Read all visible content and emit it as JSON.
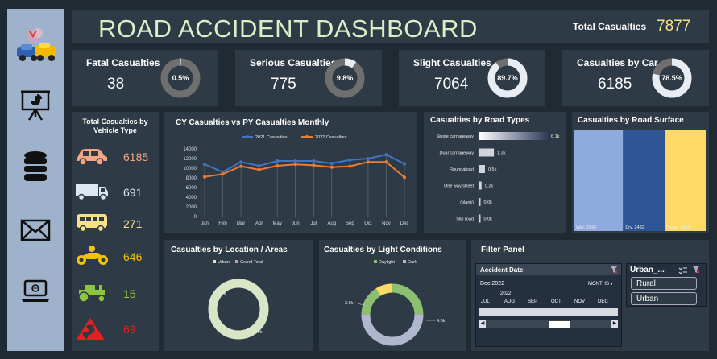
{
  "title": "ROAD ACCIDENT DASHBOARD",
  "total_casualties": {
    "label": "Total Casualties",
    "value": "7877"
  },
  "kpis": [
    {
      "label": "Fatal Casualties",
      "value": "38",
      "pct_label": "0.5%",
      "pct": 0.005
    },
    {
      "label": "Serious Casualties",
      "value": "775",
      "pct_label": "9.8%",
      "pct": 0.098
    },
    {
      "label": "Slight Casualties",
      "value": "7064",
      "pct_label": "89.7%",
      "pct": 0.897
    },
    {
      "label": "Casualties by Car",
      "value": "6185",
      "pct_label": "78.5%",
      "pct": 0.785
    }
  ],
  "sidebar": {
    "icons": [
      "car-crash-icon",
      "presentation-icon",
      "database-icon",
      "mail-icon",
      "laptop-icon"
    ]
  },
  "vehicle_panel": {
    "title": "Total Casualties by Vehicle Type",
    "items": [
      {
        "icon": "car-icon",
        "value": "6185",
        "color": "#f4a582"
      },
      {
        "icon": "truck-icon",
        "value": "691",
        "color": "#dde6f3"
      },
      {
        "icon": "bus-icon",
        "value": "271",
        "color": "#f6e08a"
      },
      {
        "icon": "motorcycle-icon",
        "value": "646",
        "color": "#f5c400"
      },
      {
        "icon": "tractor-icon",
        "value": "15",
        "color": "#8cc63f"
      },
      {
        "icon": "hazard-icon",
        "value": "69",
        "color": "#e8201c"
      }
    ]
  },
  "colors": {
    "cy": "#4472c4",
    "py": "#ed7d31",
    "urban": "#d8e6c7",
    "grand_total": "#c9a0a8",
    "daylight": "#8cc070",
    "dark": "#b0b7cc",
    "wet": "#8faadc",
    "dry": "#2f5597",
    "snow": "#ffd966"
  },
  "chart_data": [
    {
      "type": "line",
      "title": "CY Casualties vs PY Casualties Monthly",
      "categories": [
        "Jan",
        "Feb",
        "Mar",
        "Apr",
        "May",
        "Jun",
        "Jul",
        "Aug",
        "Sep",
        "Oct",
        "Nov",
        "Dec"
      ],
      "series": [
        {
          "name": "2021 Casualties",
          "values": [
            10800,
            9200,
            11300,
            10500,
            11500,
            11500,
            11500,
            11000,
            11700,
            12000,
            12800,
            10900
          ]
        },
        {
          "name": "2022 Casualties",
          "values": [
            8200,
            8800,
            10400,
            9700,
            10500,
            10800,
            10600,
            10200,
            10400,
            11300,
            11300,
            8100
          ]
        }
      ],
      "yticks": [
        "0",
        "2000",
        "4000",
        "6000",
        "8000",
        "10000",
        "12000",
        "14000"
      ],
      "ylim": [
        0,
        14000
      ]
    },
    {
      "type": "bar",
      "title": "Casualties by Road Types",
      "categories": [
        "Single carriageway",
        "Dual carriageway",
        "Roundabout",
        "One way street",
        "(blank)",
        "Slip road"
      ],
      "values": [
        6100,
        1300,
        500,
        200,
        0,
        0
      ],
      "labels": [
        "6.1k",
        "1.3k",
        "0.5k",
        "0.2k",
        "0.0k",
        "0.0k"
      ]
    },
    {
      "type": "bar",
      "title": "Casualties by Road Surface",
      "categories": [
        "Wet",
        "Dry",
        "Snow"
      ],
      "values": [
        2943,
        2482,
        2445
      ],
      "labels": [
        "Wet, 2943",
        "Dry, 2482",
        "Snow, 2445"
      ]
    },
    {
      "type": "pie",
      "title": "Casualties by Location / Areas",
      "legend": [
        "Urban",
        "Grand Total"
      ],
      "values": [
        0.0,
        7.9
      ],
      "labels": [
        "0.0k",
        "7.9k"
      ]
    },
    {
      "type": "pie",
      "title": "Casualties by Light Conditions",
      "legend": [
        "Daylight",
        "Dark"
      ],
      "values": [
        3.9,
        4.0
      ],
      "labels": [
        "3.9k",
        "4.0k"
      ]
    }
  ],
  "filter_panel": {
    "title": "Filter Panel",
    "date_slicer": {
      "title": "Accident Date",
      "selection": "Dec 2022",
      "level": "MONTHS",
      "year": "2022",
      "months": [
        "JUL",
        "AUG",
        "SEP",
        "OCT",
        "NOV",
        "DEC"
      ]
    },
    "urban_slicer": {
      "title": "Urban_...",
      "options": [
        "Rural",
        "Urban"
      ]
    }
  }
}
